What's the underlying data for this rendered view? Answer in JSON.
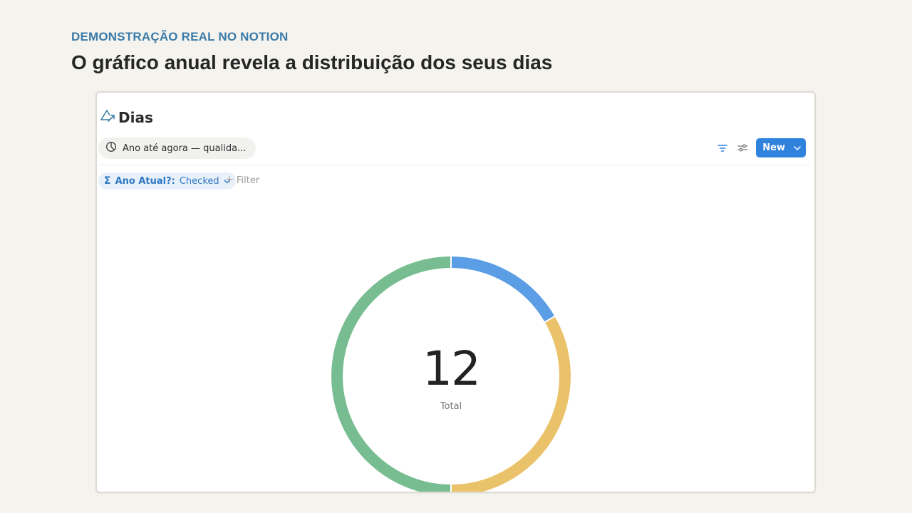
{
  "slide": {
    "eyebrow": "DEMONSTRAÇÃO REAL NO NOTION",
    "headline": "O gráfico anual revela a distribuição dos seus dias"
  },
  "notion": {
    "database_title": "Dias",
    "database_icon": "triangle-arrow-icon",
    "view": {
      "icon": "pie-chart-icon",
      "label": "Ano até agora — qualida..."
    },
    "toolbar": {
      "filter_icon": "filter-icon",
      "settings_icon": "sliders-icon",
      "new_label": "New"
    },
    "filters": {
      "active": {
        "icon": "Σ",
        "key": "Ano Atual?:",
        "value": "Checked"
      },
      "add_label": "Filter"
    }
  },
  "chart_data": {
    "type": "pie",
    "variant": "donut",
    "center_value": "12",
    "center_label": "Total",
    "slices": [
      {
        "value": 2,
        "color": "#5b9ee6"
      },
      {
        "value": 4,
        "color": "#eac26a"
      },
      {
        "value": 6,
        "color": "#77bd91"
      }
    ]
  }
}
